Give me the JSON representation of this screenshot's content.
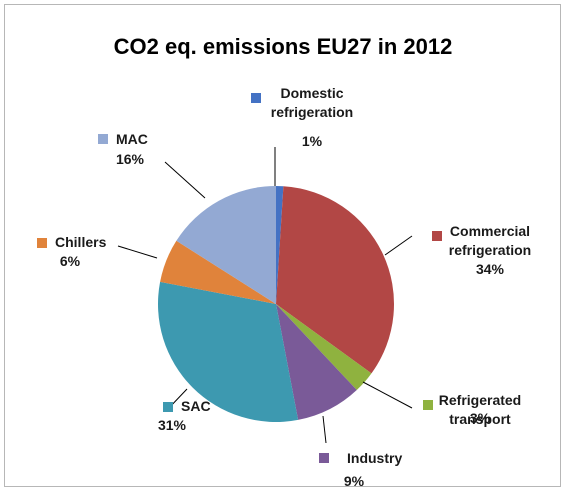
{
  "chart_data": {
    "type": "pie",
    "title": "CO2 eq. emissions EU27 in 2012",
    "slices": [
      {
        "label_lines": [
          "Domestic",
          "refrigeration"
        ],
        "pct_label": "1%",
        "value": 1,
        "color": "#4472c4"
      },
      {
        "label_lines": [
          "Commercial",
          "refrigeration"
        ],
        "pct_label": "34%",
        "value": 34,
        "color": "#b24745"
      },
      {
        "label_lines": [
          "Refrigerated",
          "transport"
        ],
        "pct_label": "3%",
        "value": 3,
        "color": "#8fb23f"
      },
      {
        "label_lines": [
          "Industry"
        ],
        "pct_label": "9%",
        "value": 9,
        "color": "#7a5a98"
      },
      {
        "label_lines": [
          "SAC"
        ],
        "pct_label": "31%",
        "value": 31,
        "color": "#3d99b0"
      },
      {
        "label_lines": [
          "Chillers"
        ],
        "pct_label": "6%",
        "value": 6,
        "color": "#e0833b"
      },
      {
        "label_lines": [
          "MAC"
        ],
        "pct_label": "16%",
        "value": 16,
        "color": "#93a9d3"
      }
    ]
  }
}
